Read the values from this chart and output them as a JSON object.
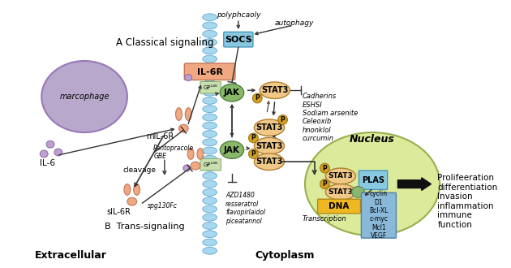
{
  "bg_color": "#ffffff",
  "extracellular_label": "Extracellular",
  "cytoplasm_label": "Cytoplasm",
  "classical_label": "A Classical signaling",
  "trans_label": "B  Trans-signaling",
  "macrophage_color": "#b8a8cc",
  "macrophage_label": "marcophage",
  "IL6_label": "IL-6",
  "mIL6R_label": "mIL-6R",
  "sIL6R_label": "sIL-6R",
  "cleavage_label": "cleavage",
  "spg130Fc_label": "spg130Fc",
  "IL6R_box_color": "#f0a882",
  "IL6R_label": "IL-6R",
  "JAK_color": "#88b868",
  "STAT3_color": "#f0c888",
  "SOCS_color": "#88c8e0",
  "SOCS_label": "SOCS",
  "nucleus_color": "#d8e890",
  "nucleus_label": "Nucleus",
  "PLAS_color": "#88c8e0",
  "PLAS_label": "PLAS",
  "DNA_color": "#f0b820",
  "DNA_label": "DNA",
  "transcription_label": "Transcription",
  "cyclin_box_color": "#8ab8d8",
  "cyclin_text": "cyclin\nD1\nBcl-XL\nc-myc\nMcl1\nVEGF",
  "membrane_color": "#a8d8f0",
  "polypheaoly_label": "polyphcaoly",
  "autophagy_label": "autophagy",
  "pantopracole_label": "Pantopracole\nGBE",
  "inhibitor_right": "Cadherins\nESHSI\nSodiam arsenite\nCeleoxib\nhnonklol\ncurcumin",
  "AZD_label": "AZD1480\nresseratrol\nflavopirlaidol\npiceatannol",
  "output_label": "Prolifeeration\ndifferentiation\nInvasion\ninflammation\nimmune\nfunction",
  "P_color": "#d4a020",
  "receptor_salmon": "#f0a882",
  "gp130_upper_label": "GP¹³⁰",
  "gp130_lower_label": "GP¹³⁸"
}
